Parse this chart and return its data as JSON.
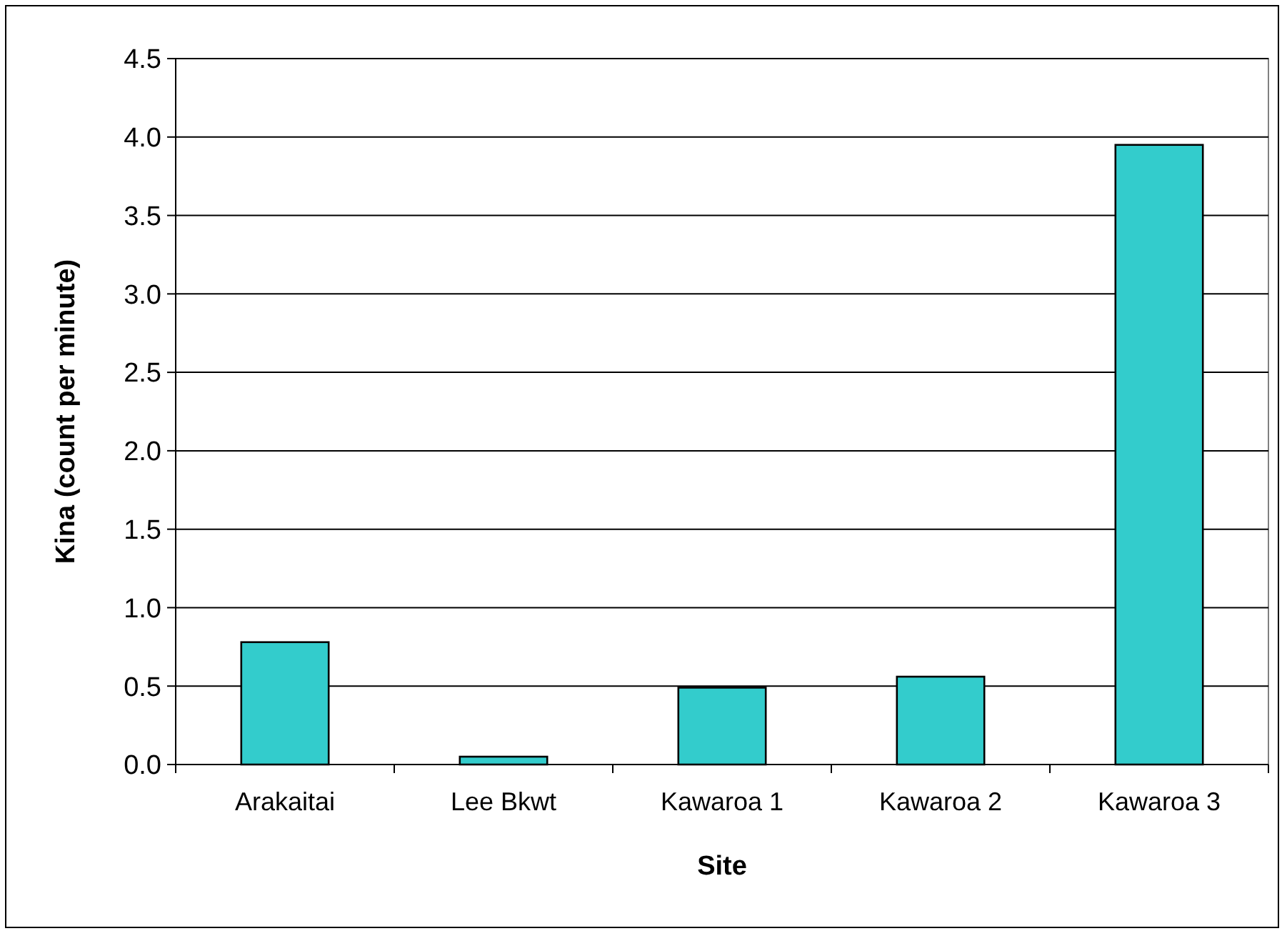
{
  "chart_data": {
    "type": "bar",
    "xlabel": "Site",
    "ylabel": "Kina (count per minute)",
    "categories": [
      "Arakaitai",
      "Lee Bkwt",
      "Kawaroa 1",
      "Kawaroa 2",
      "Kawaroa 3"
    ],
    "values": [
      0.78,
      0.05,
      0.49,
      0.56,
      3.95
    ],
    "color": "#33cccc",
    "ylim": [
      0,
      4.5
    ],
    "yticks": [
      {
        "value": 0,
        "label": "0.0"
      },
      {
        "value": 0.5,
        "label": "0.5"
      },
      {
        "value": 1,
        "label": "1.0"
      },
      {
        "value": 1.5,
        "label": "1.5"
      },
      {
        "value": 2,
        "label": "2.0"
      },
      {
        "value": 2.5,
        "label": "2.5"
      },
      {
        "value": 3,
        "label": "3.0"
      },
      {
        "value": 3.5,
        "label": "3.5"
      },
      {
        "value": 4,
        "label": "4.0"
      },
      {
        "value": 4.5,
        "label": "4.5"
      }
    ],
    "grid": "y"
  }
}
